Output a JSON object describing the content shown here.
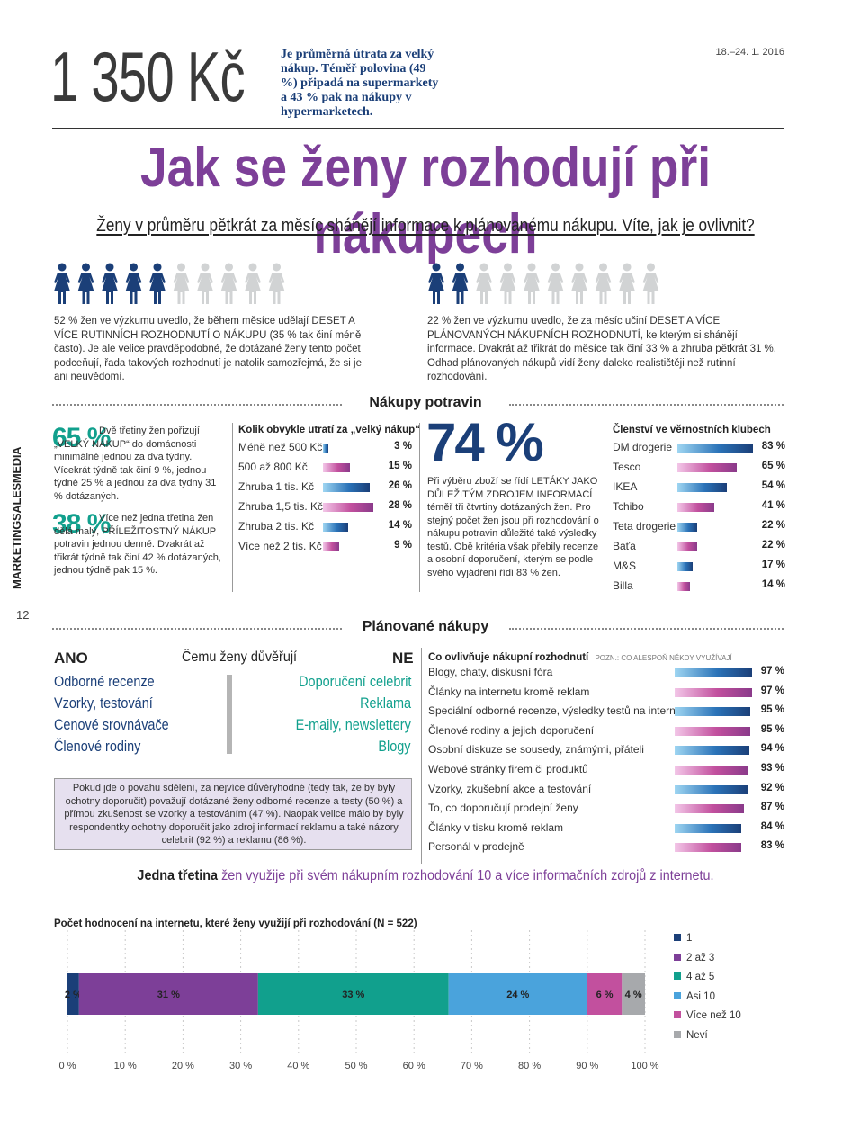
{
  "header": {
    "big_number": "1 350 Kč",
    "big_text": "Je průměrná útrata za velký nákup. Téměř polovina (49 %) připadá na supermarkety a 43 % pak na nákupy v hypermarketech.",
    "date": "18.–24. 1. 2016"
  },
  "title": "Jak se ženy rozhodují při nákupech",
  "subtitle": "Ženy v průměru pětkrát za měsíc shánějí informace k plánovanému nákupu. Víte, jak je ovlivnit?",
  "side": {
    "brand": "MARKETINGSALESMEDIA",
    "page": "12"
  },
  "figures_left": {
    "filled": 5,
    "total": 10,
    "text": "52 % žen ve výzkumu uvedlo, že během měsíce udělají DESET A VÍCE RUTINNÍCH ROZHODNUTÍ O NÁKUPU (35 % tak činí méně často). Je ale velice pravděpodobné, že dotázané ženy tento počet podceňují, řada takových rozhodnutí je natolik samozřejmá, že si je ani neuvědomí."
  },
  "figures_right": {
    "filled": 2,
    "total": 10,
    "text": "22 % žen ve výzkumu uvedlo, že za měsíc učiní DESET A VÍCE PLÁNOVANÝCH NÁKUPNÍCH ROZHODNUTÍ, ke kterým si shánějí informace. Dvakrát až třikrát do měsíce tak činí 33 % a zhruba pětkrát 31 %. Odhad plánovaných nákupů vidí ženy daleko realističtěji než rutinní rozhodování."
  },
  "section1": "Nákupy potravin",
  "stat65": {
    "value": "65 %",
    "text": "Dvě třetiny žen pořizují „VELKÝ NÁKUP“ do domácnosti minimálně jednou za dva týdny. Vícekrát týdně tak činí 9 %, jednou týdně 25 % a jednou za dva týdny 31 % dotázaných."
  },
  "stat38": {
    "value": "38 %",
    "text": "Více než jedna třetina žen dělá malý, PŘÍLEŽITOSTNÝ NÁKUP potravin jednou denně. Dvakrát až třikrát týdně tak činí 42 % dotázaných, jednou týdně pak 15 %."
  },
  "stat74": {
    "value": "74 %",
    "text": "Při výběru zboží se řídí LETÁKY JAKO DŮLEŽITÝM ZDROJEM INFORMACÍ téměř tři čtvrtiny dotázaných žen. Pro stejný počet žen jsou při rozhodování o nákupu potravin důležité také výsledky testů. Obě kritéria však přebily recenze a osobní doporučení, kterým se podle svého vyjádření řídí 83 % žen."
  },
  "section2": "Plánované nákupy",
  "trust": {
    "yes_label": "ANO",
    "title": "Čemu ženy důvěřují",
    "no_label": "NE",
    "yes": [
      "Odborné recenze",
      "Vzorky, testování",
      "Cenové srovnávače",
      "Členové rodiny"
    ],
    "no": [
      "Doporučení celebrit",
      "Reklama",
      "E-maily, newslettery",
      "Blogy"
    ],
    "box_text": "Pokud jde o povahu sdělení, za nejvíce důvěryhodné (tedy tak, že by byly ochotny doporučit) považují dotázané ženy odborné recenze a testy (50 %) a přímou zkušenost se vzorky a testováním (47 %). Naopak velice málo by byly respondentky ochotny doporučit jako zdroj informací reklamu a také názory celebrit (92 %) a reklamu (86 %)."
  },
  "highlight": {
    "bold": "Jedna třetina",
    "rest": "žen využije při svém nákupním rozhodování 10 a více informačních zdrojů z internetu."
  },
  "colors": {
    "purple": "#7d3f98",
    "navy": "#1b3f78",
    "teal": "#11a08d",
    "blue": "#2b73b8",
    "pink": "#c2509e"
  },
  "chart_data": [
    {
      "type": "bar",
      "title": "Kolik obvykle utratí za „velký nákup“",
      "categories": [
        "Méně než 500 Kč",
        "500 až 800 Kč",
        "Zhruba 1 tis. Kč",
        "Zhruba 1,5 tis. Kč",
        "Zhruba 2 tis. Kč",
        "Více než 2 tis. Kč"
      ],
      "values": [
        3,
        15,
        26,
        28,
        14,
        9
      ],
      "value_labels": [
        "3 %",
        "15 %",
        "26 %",
        "28 %",
        "14 %",
        "9 %"
      ]
    },
    {
      "type": "bar",
      "title": "Členství ve věrnostních klubech",
      "categories": [
        "DM drogerie",
        "Tesco",
        "IKEA",
        "Tchibo",
        "Teta drogerie",
        "Baťa",
        "M&S",
        "Billa"
      ],
      "values": [
        83,
        65,
        54,
        41,
        22,
        22,
        17,
        14
      ],
      "value_labels": [
        "83 %",
        "65 %",
        "54 %",
        "41 %",
        "22 %",
        "22 %",
        "17 %",
        "14 %"
      ]
    },
    {
      "type": "bar",
      "title": "Co ovlivňuje nákupní rozhodnutí",
      "note": "POZN.: CO ALESPOŇ NĚKDY VYUŽÍVAJÍ",
      "categories": [
        "Blogy, chaty, diskusní fóra",
        "Články na internetu kromě reklam",
        "Speciální odborné recenze, výsledky testů na internetu",
        "Členové rodiny a jejich doporučení",
        "Osobní diskuze se sousedy, známými, přáteli",
        "Webové stránky firem či produktů",
        "Vzorky, zkušební akce a testování",
        "To, co doporučují prodejní ženy",
        "Články v tisku kromě reklam",
        "Personál v prodejně"
      ],
      "values": [
        97,
        97,
        95,
        95,
        94,
        93,
        92,
        87,
        84,
        83
      ],
      "value_labels": [
        "97 %",
        "97 %",
        "95 %",
        "95 %",
        "94 %",
        "93 %",
        "92 %",
        "87 %",
        "84 %",
        "83 %"
      ]
    },
    {
      "type": "bar",
      "orientation": "horizontal-stacked",
      "title": "Počet hodnocení na internetu, které ženy využijí při rozhodování (N = 522)",
      "series": [
        {
          "name": "1",
          "value": 2,
          "label": "2 %",
          "color": "#1b3f78"
        },
        {
          "name": "2 až 3",
          "value": 31,
          "label": "31 %",
          "color": "#7d3f98"
        },
        {
          "name": "4 až 5",
          "value": 33,
          "label": "33 %",
          "color": "#11a08d"
        },
        {
          "name": "Asi 10",
          "value": 24,
          "label": "24 %",
          "color": "#4aa3dc"
        },
        {
          "name": "Více než 10",
          "value": 6,
          "label": "6 %",
          "color": "#c2509e"
        },
        {
          "name": "Neví",
          "value": 4,
          "label": "4 %",
          "color": "#a7a9ac"
        }
      ],
      "xlim": [
        0,
        100
      ],
      "ticks": [
        "0 %",
        "10 %",
        "20 %",
        "30 %",
        "40 %",
        "50 %",
        "60 %",
        "70 %",
        "80 %",
        "90 %",
        "100 %"
      ],
      "grid": true,
      "legend": "right"
    }
  ]
}
